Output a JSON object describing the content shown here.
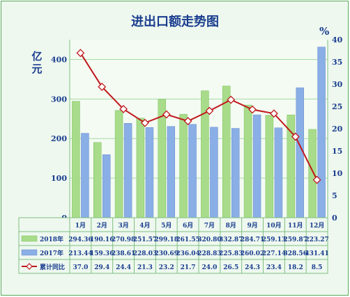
{
  "chart_data": {
    "type": "bar",
    "title": "进出口额走势图",
    "ylabel_left": "亿元",
    "ylabel_right": "%",
    "categories": [
      "1月",
      "2月",
      "3月",
      "4月",
      "5月",
      "6月",
      "7月",
      "8月",
      "9月",
      "10月",
      "11月",
      "12月"
    ],
    "series": [
      {
        "name": "2018年",
        "type": "bar",
        "color": "#a8dc8a",
        "values": [
          294.36,
          190.16,
          270.98,
          251.57,
          299.18,
          261.55,
          320.8,
          332.87,
          284.71,
          259.13,
          259.87,
          223.27
        ]
      },
      {
        "name": "2017年",
        "type": "bar",
        "color": "#8aaee6",
        "values": [
          213.44,
          159.36,
          238.61,
          228.03,
          230.69,
          236.04,
          228.83,
          225.83,
          260.02,
          227.14,
          328.56,
          431.41
        ]
      },
      {
        "name": "累计同比",
        "type": "line",
        "axis": "right",
        "color": "#c0181c",
        "values": [
          37.0,
          29.4,
          24.4,
          21.3,
          23.2,
          21.7,
          24.0,
          26.5,
          24.3,
          23.4,
          18.2,
          8.5
        ]
      }
    ],
    "ylim_left": [
      0,
      450
    ],
    "yticks_left": [
      0,
      100,
      200,
      300,
      400
    ],
    "ylim_right": [
      0,
      40
    ],
    "yticks_right": [
      0,
      5,
      10,
      15,
      20,
      25,
      30,
      35,
      40
    ],
    "grid": true,
    "table_below": true
  }
}
